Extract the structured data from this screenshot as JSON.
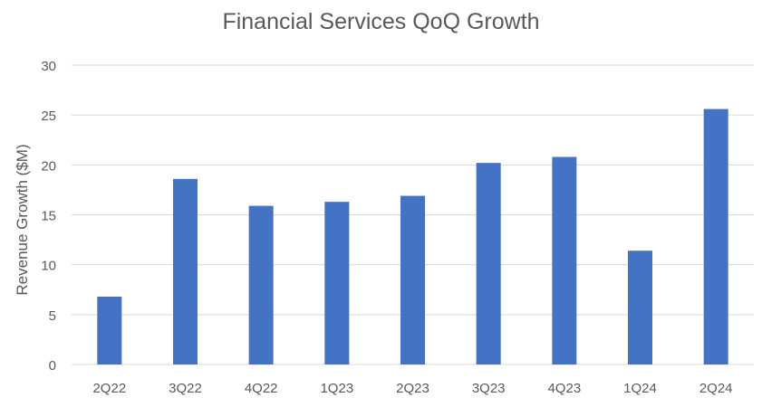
{
  "chart_data": {
    "type": "bar",
    "title": "Financial Services QoQ Growth",
    "xlabel": "",
    "ylabel": "Revenue Growth ($M)",
    "categories": [
      "2Q22",
      "3Q22",
      "4Q22",
      "1Q23",
      "2Q23",
      "3Q23",
      "4Q23",
      "1Q24",
      "2Q24"
    ],
    "series": [
      {
        "values": [
          6.8,
          18.6,
          15.9,
          16.3,
          16.9,
          20.2,
          20.8,
          11.4,
          25.6
        ]
      }
    ],
    "ylim": [
      0,
      30
    ],
    "yticks": [
      0,
      5,
      10,
      15,
      20,
      25,
      30
    ],
    "grid": true,
    "legend": "none",
    "colors": {
      "bar": "#4472C4",
      "grid": "#D9D9D9",
      "text": "#595959"
    }
  }
}
